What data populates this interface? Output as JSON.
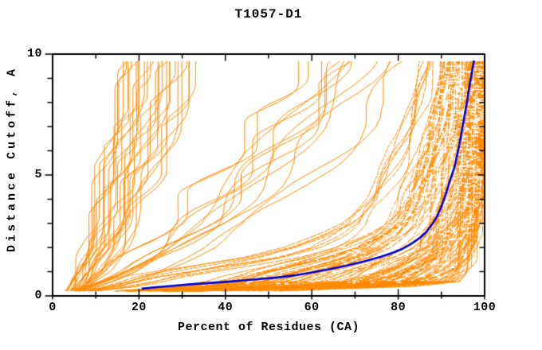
{
  "chart_data": {
    "type": "line",
    "title": "T1057-D1",
    "xlabel": "Percent of Residues (CA)",
    "ylabel": "Distance Cutoff, A",
    "xlim": [
      0,
      100
    ],
    "ylim": [
      0,
      10
    ],
    "grid": false,
    "legend": "none",
    "x_tick_values": [
      0,
      20,
      40,
      60,
      80,
      100
    ],
    "x_tick_labels": [
      "0",
      "20",
      "40",
      "60",
      "80",
      "100"
    ],
    "x_minor_step": 10,
    "y_tick_values": [
      0,
      5,
      10
    ],
    "y_tick_labels": [
      "0",
      "5",
      "10"
    ],
    "y_minor_step": 1,
    "colors": {
      "ensemble_orange": "#FF8A00",
      "highlight_blue": "#0000CD",
      "axis": "#000000",
      "background": "#FFFFFF"
    },
    "highlight_series": {
      "name": "highlighted_model",
      "color": "#0000CD",
      "line_width": 2.6,
      "points_percent_cutoff": [
        [
          20.8,
          0.3
        ],
        [
          24,
          0.36
        ],
        [
          28,
          0.42
        ],
        [
          32,
          0.48
        ],
        [
          36,
          0.53
        ],
        [
          40,
          0.58
        ],
        [
          44,
          0.64
        ],
        [
          48,
          0.7
        ],
        [
          52,
          0.76
        ],
        [
          56,
          0.85
        ],
        [
          60,
          0.97
        ],
        [
          64,
          1.1
        ],
        [
          68,
          1.25
        ],
        [
          72,
          1.42
        ],
        [
          76,
          1.62
        ],
        [
          79,
          1.8
        ],
        [
          81,
          1.95
        ],
        [
          83,
          2.15
        ],
        [
          85,
          2.4
        ],
        [
          86.5,
          2.65
        ],
        [
          88,
          3.0
        ],
        [
          89,
          3.3
        ],
        [
          90,
          3.7
        ],
        [
          91,
          4.2
        ],
        [
          92,
          4.8
        ],
        [
          93,
          5.3
        ],
        [
          93.6,
          5.8
        ],
        [
          94.2,
          6.3
        ],
        [
          94.8,
          6.9
        ],
        [
          95.4,
          7.5
        ],
        [
          96,
          8.1
        ],
        [
          96.5,
          8.7
        ],
        [
          97,
          9.2
        ],
        [
          97.4,
          9.6
        ],
        [
          97.5,
          9.7
        ]
      ]
    },
    "ensemble": {
      "name": "model_ensemble",
      "color": "#FF8A00",
      "line_width": 1,
      "cutoff_range": [
        0.2,
        9.7
      ],
      "seed": 1057,
      "groups": [
        {
          "name": "dense_band",
          "count": 105,
          "bias": 0.5,
          "wiggle": 0.05,
          "dashed": true,
          "left": [
            [
              0.1,
              3.5
            ],
            [
              0.3,
              6
            ],
            [
              0.5,
              9
            ],
            [
              0.8,
              16
            ],
            [
              1.2,
              30
            ],
            [
              1.6,
              44
            ],
            [
              2,
              53
            ],
            [
              2.5,
              60
            ],
            [
              3,
              65
            ],
            [
              4,
              71
            ],
            [
              5,
              75
            ],
            [
              6,
              78
            ],
            [
              7,
              80.5
            ],
            [
              8,
              82.5
            ],
            [
              9,
              84
            ],
            [
              9.7,
              85
            ]
          ],
          "right": [
            [
              0.1,
              7
            ],
            [
              0.3,
              60
            ],
            [
              0.5,
              88
            ],
            [
              0.8,
              92.5
            ],
            [
              1.2,
              95
            ],
            [
              1.6,
              96.2
            ],
            [
              2,
              97
            ],
            [
              2.5,
              97.8
            ],
            [
              3,
              98.4
            ],
            [
              4,
              99
            ],
            [
              5,
              99.4
            ],
            [
              6,
              99.7
            ],
            [
              7,
              99.8
            ],
            [
              8,
              99.9
            ],
            [
              9,
              100
            ],
            [
              9.7,
              100
            ]
          ]
        },
        {
          "name": "right_outliers",
          "count": 6,
          "bias": 1.0,
          "wiggle": 0.02,
          "dashed": true,
          "left": [
            [
              0.1,
              15
            ],
            [
              0.3,
              55
            ],
            [
              0.5,
              90
            ],
            [
              1,
              92.5
            ],
            [
              1.5,
              93.5
            ],
            [
              2,
              94.5
            ],
            [
              3,
              96
            ],
            [
              4,
              97
            ],
            [
              6,
              98
            ],
            [
              9.7,
              99
            ]
          ],
          "right": [
            [
              0.1,
              30
            ],
            [
              0.3,
              75
            ],
            [
              0.5,
              94
            ],
            [
              1,
              96
            ],
            [
              1.5,
              96.8
            ],
            [
              2,
              97.5
            ],
            [
              3,
              98.5
            ],
            [
              4,
              99
            ],
            [
              6,
              99.6
            ],
            [
              9.7,
              100
            ]
          ]
        },
        {
          "name": "mid_quality",
          "count": 13,
          "bias": 1.0,
          "wiggle": 0.12,
          "dashed": false,
          "left": [
            [
              0.1,
              3.5
            ],
            [
              0.5,
              7
            ],
            [
              1,
              11
            ],
            [
              2,
              17
            ],
            [
              3,
              23
            ],
            [
              4,
              28
            ],
            [
              5,
              33
            ],
            [
              6,
              38
            ],
            [
              7,
              43
            ],
            [
              8,
              47
            ],
            [
              9,
              51
            ],
            [
              9.7,
              54
            ]
          ],
          "right": [
            [
              0.1,
              6
            ],
            [
              0.5,
              16
            ],
            [
              1,
              26
            ],
            [
              2,
              40
            ],
            [
              3,
              50
            ],
            [
              4,
              58
            ],
            [
              5,
              64
            ],
            [
              6,
              70
            ],
            [
              7,
              75
            ],
            [
              8,
              79
            ],
            [
              9,
              83
            ],
            [
              9.7,
              86
            ]
          ]
        },
        {
          "name": "poor_models",
          "count": 27,
          "bias": 1.0,
          "wiggle": 0.18,
          "dashed": false,
          "left": [
            [
              0.1,
              3
            ],
            [
              0.5,
              4.5
            ],
            [
              1,
              5.5
            ],
            [
              2,
              7
            ],
            [
              3,
              8
            ],
            [
              5,
              10
            ],
            [
              7,
              11.5
            ],
            [
              9,
              13
            ],
            [
              9.7,
              13.5
            ]
          ],
          "right": [
            [
              0.1,
              6
            ],
            [
              0.5,
              9
            ],
            [
              1,
              12
            ],
            [
              2,
              16
            ],
            [
              3,
              19
            ],
            [
              5,
              24
            ],
            [
              7,
              28
            ],
            [
              9,
              31
            ],
            [
              9.7,
              32
            ]
          ]
        }
      ]
    }
  }
}
